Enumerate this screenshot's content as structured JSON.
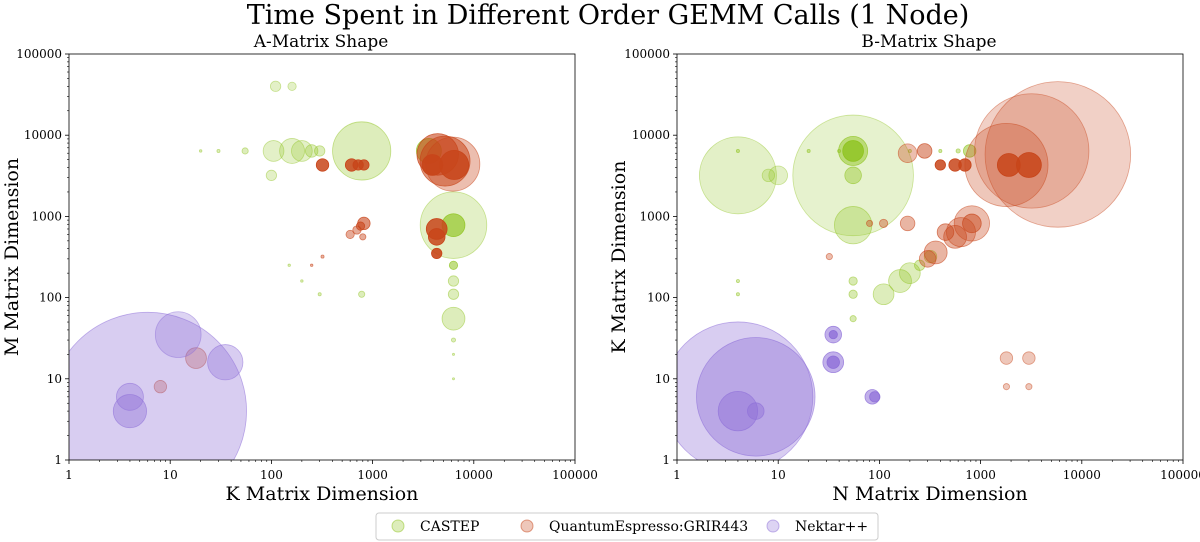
{
  "title": "Time Spent in Different Order GEMM Calls (1 Node)",
  "legend": {
    "placement": "bottom-center",
    "entries": [
      {
        "name": "CASTEP",
        "color": "#8fc31f"
      },
      {
        "name": "QuantumEspresso:GRIR443",
        "color": "#c8451a"
      },
      {
        "name": "Nektar++",
        "color": "#8e6fd8"
      }
    ]
  },
  "chart_data": [
    {
      "type": "scatter",
      "title": "A-Matrix Shape",
      "xlabel": "K Matrix Dimension",
      "ylabel": "M Matrix Dimension",
      "xscale": "log",
      "yscale": "log",
      "xlim": [
        1,
        100000
      ],
      "ylim": [
        1,
        100000
      ],
      "xticks": [
        "1",
        "10",
        "100",
        "1000",
        "10000",
        "100000"
      ],
      "yticks": [
        "1",
        "10",
        "100",
        "1000",
        "10000",
        "100000"
      ],
      "grid": false,
      "series": [
        {
          "name": "CASTEP",
          "color": "#8fc31f",
          "points": [
            {
              "x": 110,
              "y": 40000,
              "s": 5,
              "a": 0.25
            },
            {
              "x": 160,
              "y": 40000,
              "s": 4,
              "a": 0.25
            },
            {
              "x": 105,
              "y": 6400,
              "s": 10,
              "a": 0.25
            },
            {
              "x": 160,
              "y": 6400,
              "s": 12,
              "a": 0.25
            },
            {
              "x": 200,
              "y": 6400,
              "s": 10,
              "a": 0.25
            },
            {
              "x": 250,
              "y": 6400,
              "s": 6,
              "a": 0.3
            },
            {
              "x": 300,
              "y": 6400,
              "s": 5,
              "a": 0.3
            },
            {
              "x": 55,
              "y": 6400,
              "s": 3,
              "a": 0.3
            },
            {
              "x": 30,
              "y": 6400,
              "s": 1.5,
              "a": 0.3
            },
            {
              "x": 20,
              "y": 6400,
              "s": 1.2,
              "a": 0.3
            },
            {
              "x": 100,
              "y": 3200,
              "s": 5,
              "a": 0.25
            },
            {
              "x": 780,
              "y": 6400,
              "s": 28,
              "a": 0.3
            },
            {
              "x": 3600,
              "y": 6400,
              "s": 12,
              "a": 0.6
            },
            {
              "x": 6300,
              "y": 780,
              "s": 32,
              "a": 0.25
            },
            {
              "x": 6300,
              "y": 780,
              "s": 11,
              "a": 0.65
            },
            {
              "x": 6300,
              "y": 250,
              "s": 4,
              "a": 0.55
            },
            {
              "x": 6300,
              "y": 160,
              "s": 5,
              "a": 0.3
            },
            {
              "x": 6300,
              "y": 110,
              "s": 5,
              "a": 0.3
            },
            {
              "x": 6300,
              "y": 55,
              "s": 11,
              "a": 0.3
            },
            {
              "x": 6300,
              "y": 30,
              "s": 2,
              "a": 0.3
            },
            {
              "x": 780,
              "y": 110,
              "s": 3,
              "a": 0.3
            },
            {
              "x": 300,
              "y": 110,
              "s": 1.5,
              "a": 0.3
            },
            {
              "x": 200,
              "y": 160,
              "s": 1.2,
              "a": 0.3
            },
            {
              "x": 150,
              "y": 250,
              "s": 1.2,
              "a": 0.3
            },
            {
              "x": 6300,
              "y": 20,
              "s": 1,
              "a": 0.3
            },
            {
              "x": 6300,
              "y": 10,
              "s": 1,
              "a": 0.3
            }
          ]
        },
        {
          "name": "QuantumEspresso:GRIR443",
          "color": "#c8451a",
          "points": [
            {
              "x": 320,
              "y": 4300,
              "s": 6,
              "a": 0.85
            },
            {
              "x": 620,
              "y": 4300,
              "s": 6,
              "a": 0.85
            },
            {
              "x": 720,
              "y": 4300,
              "s": 5,
              "a": 0.85
            },
            {
              "x": 820,
              "y": 4300,
              "s": 5,
              "a": 0.85
            },
            {
              "x": 4400,
              "y": 5800,
              "s": 20,
              "a": 0.6
            },
            {
              "x": 5200,
              "y": 4800,
              "s": 24,
              "a": 0.55
            },
            {
              "x": 6200,
              "y": 4400,
              "s": 26,
              "a": 0.35
            },
            {
              "x": 6400,
              "y": 4300,
              "s": 14,
              "a": 0.85
            },
            {
              "x": 3900,
              "y": 4300,
              "s": 10,
              "a": 0.9
            },
            {
              "x": 4300,
              "y": 700,
              "s": 10,
              "a": 0.85
            },
            {
              "x": 4300,
              "y": 560,
              "s": 8,
              "a": 0.85
            },
            {
              "x": 4300,
              "y": 350,
              "s": 5,
              "a": 0.9
            },
            {
              "x": 820,
              "y": 820,
              "s": 6,
              "a": 0.6
            },
            {
              "x": 760,
              "y": 760,
              "s": 4,
              "a": 0.6
            },
            {
              "x": 700,
              "y": 680,
              "s": 4,
              "a": 0.45
            },
            {
              "x": 600,
              "y": 600,
              "s": 4,
              "a": 0.45
            },
            {
              "x": 800,
              "y": 560,
              "s": 3,
              "a": 0.45
            },
            {
              "x": 18,
              "y": 18,
              "s": 10,
              "a": 0.3
            },
            {
              "x": 8,
              "y": 8,
              "s": 6,
              "a": 0.3
            },
            {
              "x": 320,
              "y": 320,
              "s": 1.5,
              "a": 0.4
            },
            {
              "x": 250,
              "y": 250,
              "s": 1.2,
              "a": 0.4
            }
          ]
        },
        {
          "name": "Nektar++",
          "color": "#8e6fd8",
          "points": [
            {
              "x": 6,
              "y": 4,
              "s": 95,
              "a": 0.35
            },
            {
              "x": 12,
              "y": 35,
              "s": 22,
              "a": 0.3
            },
            {
              "x": 35,
              "y": 16,
              "s": 17,
              "a": 0.35
            },
            {
              "x": 4,
              "y": 6,
              "s": 13,
              "a": 0.35
            },
            {
              "x": 4,
              "y": 4,
              "s": 16,
              "a": 0.4
            }
          ]
        }
      ]
    },
    {
      "type": "scatter",
      "title": "B-Matrix Shape",
      "xlabel": "N Matrix Dimension",
      "ylabel": "K Matrix Dimension",
      "xscale": "log",
      "yscale": "log",
      "xlim": [
        1,
        100000
      ],
      "ylim": [
        1,
        100000
      ],
      "xticks": [
        "1",
        "10",
        "100",
        "1000",
        "10000",
        "100000"
      ],
      "yticks": [
        "1",
        "10",
        "100",
        "1000",
        "10000",
        "100000"
      ],
      "grid": false,
      "series": [
        {
          "name": "CASTEP",
          "color": "#8fc31f",
          "points": [
            {
              "x": 4,
              "y": 3200,
              "s": 37,
              "a": 0.25
            },
            {
              "x": 55,
              "y": 3200,
              "s": 58,
              "a": 0.22
            },
            {
              "x": 55,
              "y": 6400,
              "s": 14,
              "a": 0.5
            },
            {
              "x": 55,
              "y": 6400,
              "s": 10,
              "a": 0.8
            },
            {
              "x": 55,
              "y": 780,
              "s": 18,
              "a": 0.3
            },
            {
              "x": 55,
              "y": 3200,
              "s": 8,
              "a": 0.4
            },
            {
              "x": 10,
              "y": 3200,
              "s": 9,
              "a": 0.25
            },
            {
              "x": 8,
              "y": 3200,
              "s": 6,
              "a": 0.25
            },
            {
              "x": 110,
              "y": 110,
              "s": 10,
              "a": 0.3
            },
            {
              "x": 160,
              "y": 160,
              "s": 11,
              "a": 0.3
            },
            {
              "x": 200,
              "y": 200,
              "s": 10,
              "a": 0.3
            },
            {
              "x": 250,
              "y": 250,
              "s": 5,
              "a": 0.35
            },
            {
              "x": 320,
              "y": 320,
              "s": 6,
              "a": 0.35
            },
            {
              "x": 780,
              "y": 6400,
              "s": 6,
              "a": 0.5
            },
            {
              "x": 55,
              "y": 160,
              "s": 4,
              "a": 0.35
            },
            {
              "x": 55,
              "y": 110,
              "s": 4,
              "a": 0.35
            },
            {
              "x": 55,
              "y": 55,
              "s": 3,
              "a": 0.35
            },
            {
              "x": 4,
              "y": 160,
              "s": 1.5,
              "a": 0.35
            },
            {
              "x": 4,
              "y": 110,
              "s": 1.5,
              "a": 0.35
            },
            {
              "x": 4,
              "y": 6400,
              "s": 1.5,
              "a": 0.4
            },
            {
              "x": 20,
              "y": 6400,
              "s": 1.5,
              "a": 0.4
            },
            {
              "x": 40,
              "y": 6400,
              "s": 1.5,
              "a": 0.4
            },
            {
              "x": 200,
              "y": 6400,
              "s": 1.5,
              "a": 0.4
            },
            {
              "x": 400,
              "y": 6400,
              "s": 1.5,
              "a": 0.4
            },
            {
              "x": 600,
              "y": 6400,
              "s": 2,
              "a": 0.4
            }
          ]
        },
        {
          "name": "QuantumEspresso:GRIR443",
          "color": "#c8451a",
          "points": [
            {
              "x": 5800,
              "y": 5800,
              "s": 70,
              "a": 0.25
            },
            {
              "x": 3200,
              "y": 6400,
              "s": 55,
              "a": 0.25
            },
            {
              "x": 1800,
              "y": 4300,
              "s": 40,
              "a": 0.3
            },
            {
              "x": 1900,
              "y": 4300,
              "s": 11,
              "a": 0.85
            },
            {
              "x": 3000,
              "y": 4300,
              "s": 12,
              "a": 0.85
            },
            {
              "x": 820,
              "y": 820,
              "s": 17,
              "a": 0.35
            },
            {
              "x": 820,
              "y": 820,
              "s": 9,
              "a": 0.5
            },
            {
              "x": 640,
              "y": 640,
              "s": 14,
              "a": 0.35
            },
            {
              "x": 560,
              "y": 560,
              "s": 11,
              "a": 0.4
            },
            {
              "x": 450,
              "y": 640,
              "s": 8,
              "a": 0.45
            },
            {
              "x": 360,
              "y": 360,
              "s": 11,
              "a": 0.4
            },
            {
              "x": 300,
              "y": 300,
              "s": 8,
              "a": 0.4
            },
            {
              "x": 400,
              "y": 4300,
              "s": 5,
              "a": 0.85
            },
            {
              "x": 560,
              "y": 4300,
              "s": 6,
              "a": 0.85
            },
            {
              "x": 700,
              "y": 4300,
              "s": 6,
              "a": 0.85
            },
            {
              "x": 280,
              "y": 6400,
              "s": 7,
              "a": 0.5
            },
            {
              "x": 190,
              "y": 6000,
              "s": 9,
              "a": 0.35
            },
            {
              "x": 190,
              "y": 820,
              "s": 7,
              "a": 0.4
            },
            {
              "x": 110,
              "y": 820,
              "s": 4,
              "a": 0.4
            },
            {
              "x": 80,
              "y": 820,
              "s": 3,
              "a": 0.4
            },
            {
              "x": 1800,
              "y": 18,
              "s": 6,
              "a": 0.3
            },
            {
              "x": 3000,
              "y": 18,
              "s": 6,
              "a": 0.3
            },
            {
              "x": 1800,
              "y": 8,
              "s": 3,
              "a": 0.3
            },
            {
              "x": 3000,
              "y": 8,
              "s": 3,
              "a": 0.3
            },
            {
              "x": 32,
              "y": 320,
              "s": 3,
              "a": 0.35
            }
          ]
        },
        {
          "name": "Nektar++",
          "color": "#8e6fd8",
          "points": [
            {
              "x": 4,
              "y": 6,
              "s": 72,
              "a": 0.35
            },
            {
              "x": 6,
              "y": 6,
              "s": 57,
              "a": 0.4
            },
            {
              "x": 4,
              "y": 4,
              "s": 19,
              "a": 0.45
            },
            {
              "x": 6,
              "y": 4,
              "s": 8,
              "a": 0.45
            },
            {
              "x": 35,
              "y": 35,
              "s": 8,
              "a": 0.55
            },
            {
              "x": 35,
              "y": 35,
              "s": 4,
              "a": 0.8
            },
            {
              "x": 35,
              "y": 16,
              "s": 10,
              "a": 0.55
            },
            {
              "x": 35,
              "y": 16,
              "s": 6,
              "a": 0.8
            },
            {
              "x": 85,
              "y": 6,
              "s": 7,
              "a": 0.55
            },
            {
              "x": 90,
              "y": 6,
              "s": 5,
              "a": 0.7
            }
          ]
        }
      ]
    }
  ]
}
